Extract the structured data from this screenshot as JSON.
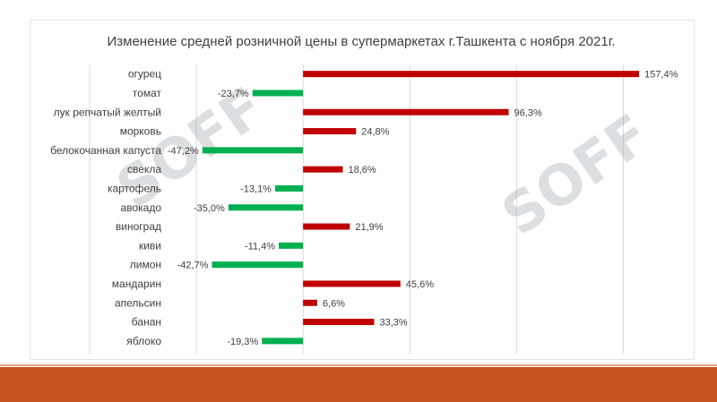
{
  "watermark": {
    "text": "SOFF",
    "color": "#9aa3a8",
    "mark_color": "#1f9d55"
  },
  "colors": {
    "positive": "#c00000",
    "negative": "#00b050",
    "footer": "#c5541f"
  },
  "chart_data": {
    "type": "bar",
    "orientation": "horizontal",
    "title": "Изменение средней розничной цены в супермаркетах г.Ташкента с ноября 2021г.",
    "xlabel": "",
    "ylabel": "",
    "xlim": [
      -100,
      175
    ],
    "grid": true,
    "legend": "none",
    "categories": [
      "огурец",
      "томат",
      "лук репчатый желтый",
      "морковь",
      "белокочанная капуста",
      "свекла",
      "картофель",
      "авокадо",
      "виноград",
      "киви",
      "лимон",
      "мандарин",
      "апельсин",
      "банан",
      "яблоко"
    ],
    "values": [
      157.4,
      -23.7,
      96.3,
      24.8,
      -47.2,
      18.6,
      -13.1,
      -35.0,
      21.9,
      -11.4,
      -42.7,
      45.6,
      6.6,
      33.3,
      -19.3
    ],
    "labels": [
      "157,4%",
      "-23,7%",
      "96,3%",
      "24,8%",
      "-47,2%",
      "18,6%",
      "-13,1%",
      "-35,0%",
      "21,9%",
      "-11,4%",
      "-42,7%",
      "45,6%",
      "6,6%",
      "33,3%",
      "-19,3%"
    ]
  }
}
